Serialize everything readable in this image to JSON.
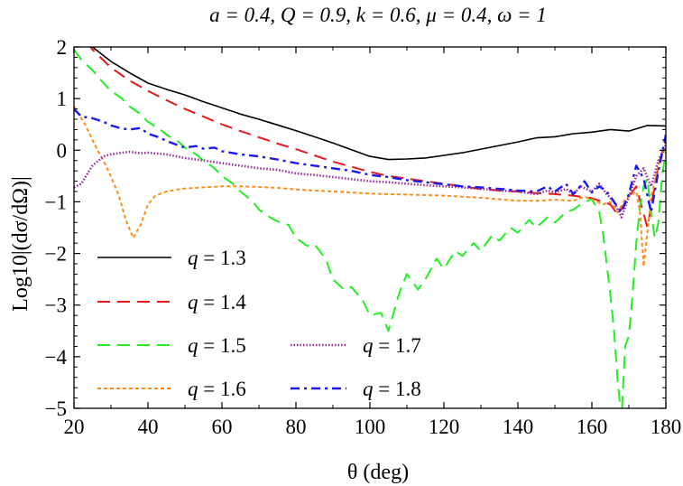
{
  "chart_data": {
    "type": "line",
    "title": "a = 0.4, Q = 0.9, k = 0.6, μ = 0.4, ω = 1",
    "xlabel": "θ (deg)",
    "ylabel": "Log10|(dσ/dΩ)|",
    "xlim": [
      20,
      180
    ],
    "ylim": [
      -5,
      2
    ],
    "xticks": [
      20,
      40,
      60,
      80,
      100,
      120,
      140,
      160,
      180
    ],
    "yticks": [
      -5,
      -4,
      -3,
      -2,
      -1,
      0,
      1,
      2
    ],
    "grid": false,
    "legend_placement": "lower-left",
    "series": [
      {
        "name": "q = 1.3",
        "color": "#000000",
        "style": "solid",
        "x": [
          20,
          25,
          30,
          35,
          40,
          45,
          50,
          55,
          60,
          65,
          70,
          75,
          80,
          85,
          90,
          95,
          100,
          105,
          110,
          115,
          120,
          125,
          130,
          135,
          140,
          145,
          150,
          155,
          160,
          165,
          170,
          175,
          180
        ],
        "y": [
          2.3,
          2.0,
          1.72,
          1.5,
          1.3,
          1.18,
          1.07,
          0.94,
          0.82,
          0.7,
          0.6,
          0.49,
          0.38,
          0.26,
          0.14,
          0.01,
          -0.12,
          -0.18,
          -0.17,
          -0.15,
          -0.1,
          -0.05,
          0.02,
          0.09,
          0.16,
          0.24,
          0.26,
          0.32,
          0.35,
          0.4,
          0.37,
          0.48,
          0.47
        ]
      },
      {
        "name": "q = 1.4",
        "color": "#e41a1c",
        "style": "dashed",
        "x": [
          20,
          25,
          30,
          35,
          40,
          45,
          50,
          55,
          60,
          65,
          70,
          75,
          80,
          85,
          90,
          95,
          100,
          105,
          110,
          115,
          120,
          125,
          130,
          135,
          140,
          145,
          150,
          155,
          160,
          165,
          167,
          170,
          172,
          175,
          178,
          180
        ],
        "y": [
          2.4,
          1.95,
          1.6,
          1.35,
          1.15,
          0.97,
          0.8,
          0.65,
          0.5,
          0.37,
          0.25,
          0.13,
          0.02,
          -0.1,
          -0.22,
          -0.32,
          -0.42,
          -0.5,
          -0.55,
          -0.6,
          -0.65,
          -0.7,
          -0.75,
          -0.78,
          -0.8,
          -0.83,
          -0.85,
          -0.88,
          -0.93,
          -1.05,
          -1.25,
          -0.9,
          -0.7,
          -1.5,
          -0.3,
          0.2
        ]
      },
      {
        "name": "q = 1.5",
        "color": "#22ee22",
        "style": "dashed",
        "x": [
          20,
          22,
          25,
          28,
          30,
          33,
          35,
          38,
          40,
          43,
          45,
          48,
          50,
          53,
          55,
          58,
          60,
          63,
          65,
          68,
          70,
          73,
          75,
          78,
          80,
          83,
          85,
          88,
          90,
          93,
          95,
          98,
          100,
          103,
          105,
          108,
          110,
          113,
          115,
          118,
          120,
          123,
          125,
          128,
          130,
          133,
          135,
          138,
          140,
          143,
          145,
          148,
          150,
          153,
          155,
          158,
          160,
          162,
          163,
          164,
          165,
          166,
          167,
          168,
          169,
          170,
          171,
          172,
          173,
          174,
          175,
          176,
          177,
          178,
          179,
          180
        ],
        "y": [
          1.95,
          1.75,
          1.55,
          1.3,
          1.15,
          1.0,
          0.85,
          0.7,
          0.55,
          0.42,
          0.3,
          0.18,
          0.05,
          -0.08,
          -0.2,
          -0.35,
          -0.5,
          -0.65,
          -0.8,
          -0.97,
          -1.15,
          -1.3,
          -1.38,
          -1.45,
          -1.7,
          -1.85,
          -1.82,
          -2.1,
          -2.5,
          -2.7,
          -2.65,
          -2.9,
          -3.2,
          -3.15,
          -3.5,
          -2.75,
          -2.4,
          -2.7,
          -2.5,
          -2.1,
          -2.3,
          -1.95,
          -2.05,
          -1.8,
          -1.95,
          -1.65,
          -1.75,
          -1.5,
          -1.6,
          -1.35,
          -1.5,
          -1.3,
          -1.4,
          -1.2,
          -1.15,
          -1.0,
          -0.95,
          -1.2,
          -1.6,
          -2.2,
          -2.8,
          -3.5,
          -4.5,
          -5.2,
          -3.8,
          -3.6,
          -2.8,
          -1.8,
          -1.1,
          -0.7,
          -0.55,
          -1.2,
          -1.7,
          -1.4,
          -0.5,
          0.0
        ]
      },
      {
        "name": "q = 1.6",
        "color": "#ff8c1a",
        "style": "short-dashed",
        "x": [
          20,
          23,
          26,
          29,
          32,
          34,
          36,
          38,
          40,
          42,
          45,
          48,
          50,
          55,
          60,
          65,
          70,
          75,
          80,
          85,
          90,
          95,
          100,
          105,
          110,
          115,
          120,
          125,
          130,
          135,
          140,
          145,
          150,
          155,
          158,
          160,
          163,
          165,
          167,
          169,
          171,
          172,
          173,
          174,
          175,
          176,
          177,
          178,
          179,
          180
        ],
        "y": [
          0.85,
          0.5,
          0.05,
          -0.35,
          -0.85,
          -1.35,
          -1.7,
          -1.45,
          -1.05,
          -0.88,
          -0.8,
          -0.76,
          -0.74,
          -0.72,
          -0.7,
          -0.7,
          -0.71,
          -0.73,
          -0.76,
          -0.78,
          -0.8,
          -0.82,
          -0.84,
          -0.85,
          -0.86,
          -0.87,
          -0.88,
          -0.9,
          -0.92,
          -0.95,
          -0.98,
          -0.98,
          -0.96,
          -0.98,
          -0.9,
          -0.95,
          -1.05,
          -1.0,
          -1.2,
          -0.95,
          -0.85,
          -0.8,
          -1.2,
          -2.25,
          -1.6,
          -0.9,
          -0.6,
          -0.3,
          -0.1,
          0.1
        ]
      },
      {
        "name": "q = 1.7",
        "color": "#9a2a9a",
        "style": "dotted",
        "x": [
          20,
          22,
          25,
          28,
          30,
          33,
          35,
          38,
          40,
          45,
          50,
          55,
          60,
          65,
          70,
          75,
          80,
          85,
          90,
          95,
          100,
          105,
          110,
          115,
          120,
          125,
          130,
          135,
          140,
          145,
          148,
          150,
          153,
          155,
          157,
          160,
          162,
          164,
          166,
          168,
          170,
          172,
          174,
          176,
          178,
          180
        ],
        "y": [
          -0.72,
          -0.65,
          -0.3,
          -0.12,
          -0.08,
          -0.05,
          -0.03,
          -0.06,
          -0.05,
          -0.08,
          -0.15,
          -0.2,
          -0.25,
          -0.3,
          -0.35,
          -0.38,
          -0.45,
          -0.48,
          -0.52,
          -0.56,
          -0.6,
          -0.62,
          -0.65,
          -0.68,
          -0.7,
          -0.72,
          -0.75,
          -0.78,
          -0.8,
          -0.85,
          -0.78,
          -0.82,
          -0.75,
          -0.85,
          -0.7,
          -0.8,
          -0.65,
          -0.85,
          -1.0,
          -1.3,
          -0.9,
          -0.5,
          -0.35,
          -0.7,
          -0.2,
          0.1
        ]
      },
      {
        "name": "q = 1.8",
        "color": "#1a1aee",
        "style": "dash-dot",
        "x": [
          20,
          22,
          25,
          28,
          30,
          33,
          35,
          38,
          40,
          43,
          45,
          48,
          50,
          53,
          55,
          58,
          60,
          65,
          70,
          75,
          80,
          85,
          90,
          95,
          100,
          105,
          110,
          115,
          120,
          125,
          130,
          135,
          140,
          145,
          148,
          150,
          153,
          155,
          158,
          160,
          162,
          164,
          166,
          168,
          170,
          172,
          174,
          176,
          178,
          180
        ],
        "y": [
          0.8,
          0.65,
          0.62,
          0.55,
          0.48,
          0.42,
          0.4,
          0.43,
          0.32,
          0.25,
          0.18,
          0.1,
          0.05,
          0.08,
          0.03,
          0.05,
          -0.02,
          -0.08,
          -0.12,
          -0.18,
          -0.25,
          -0.3,
          -0.35,
          -0.4,
          -0.48,
          -0.52,
          -0.58,
          -0.62,
          -0.66,
          -0.7,
          -0.72,
          -0.75,
          -0.78,
          -0.8,
          -0.7,
          -0.8,
          -0.65,
          -0.85,
          -0.6,
          -0.82,
          -0.7,
          -0.8,
          -1.0,
          -1.2,
          -0.85,
          -0.3,
          -0.55,
          -1.2,
          -0.4,
          0.3
        ]
      }
    ]
  }
}
